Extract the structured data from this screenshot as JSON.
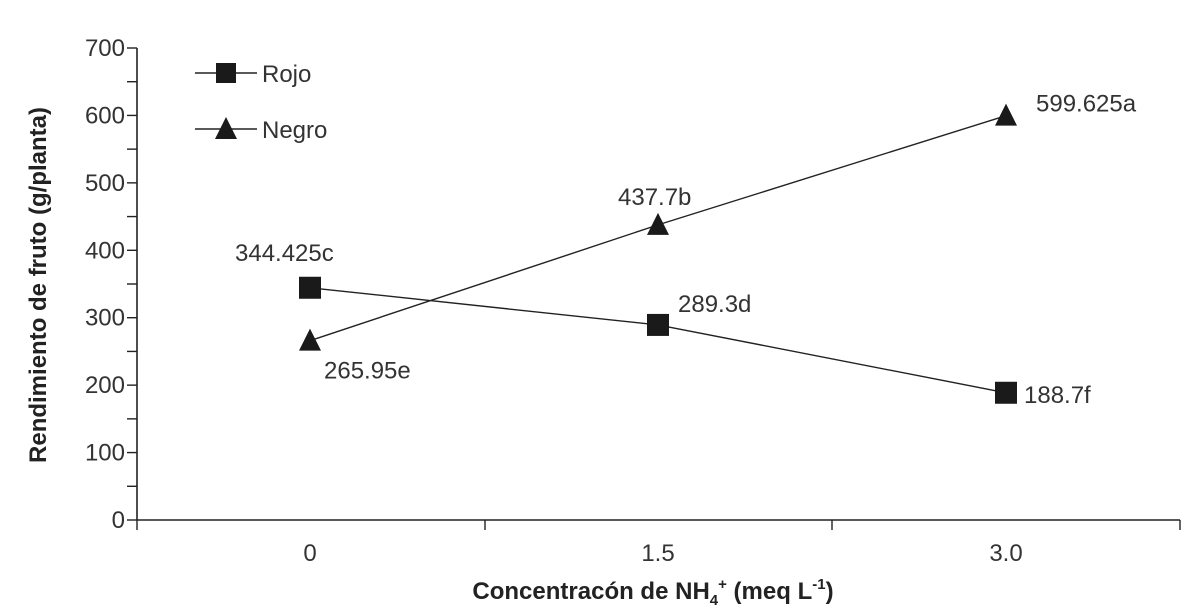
{
  "chart_data": {
    "type": "line",
    "categories": [
      "0",
      "1.5",
      "3.0"
    ],
    "series": [
      {
        "name": "Rojo",
        "marker": "square",
        "values": [
          344.425,
          289.3,
          188.7
        ],
        "labels": [
          "344.425c",
          "289.3d",
          "188.7f"
        ]
      },
      {
        "name": "Negro",
        "marker": "triangle",
        "values": [
          265.95,
          437.7,
          599.625
        ],
        "labels": [
          "265.95e",
          "437.7b",
          "599.625a"
        ]
      }
    ],
    "ylim": [
      0,
      700
    ],
    "yticks": [
      "0",
      "100",
      "200",
      "300",
      "400",
      "500",
      "600",
      "700"
    ],
    "xlabel": {
      "main": "Concentracón de NH",
      "sub": "4",
      "sup": "+",
      "mid": " (meq L",
      "sup2": "-1",
      "end": ")"
    },
    "ylabel": "Rendimiento de fruto (g/planta)",
    "legend_position": "top-left",
    "grid": false,
    "colors": {
      "line": "#222222",
      "marker": "#1a1a1a",
      "text": "#333333"
    }
  }
}
